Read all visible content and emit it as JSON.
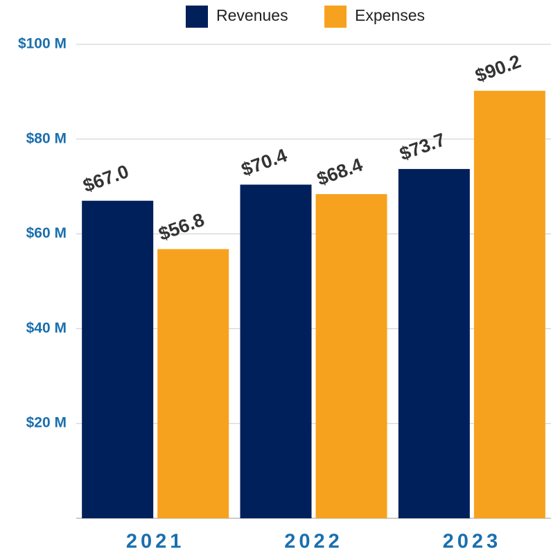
{
  "chart_data": {
    "type": "bar",
    "categories": [
      "2021",
      "2022",
      "2023"
    ],
    "series": [
      {
        "name": "Revenues",
        "color": "#00205b",
        "values": [
          67.0,
          70.4,
          73.7
        ],
        "value_labels": [
          "$67.0",
          "$70.4",
          "$73.7"
        ]
      },
      {
        "name": "Expenses",
        "color": "#f7a21e",
        "values": [
          56.8,
          68.4,
          90.2
        ],
        "value_labels": [
          "$56.8",
          "$68.4",
          "$90.2"
        ]
      }
    ],
    "ylim": [
      0,
      100
    ],
    "yticks": [
      {
        "value": 20,
        "label": "$20 M"
      },
      {
        "value": 40,
        "label": "$40 M"
      },
      {
        "value": 60,
        "label": "$60 M"
      },
      {
        "value": 80,
        "label": "$80 M"
      },
      {
        "value": 100,
        "label": "$100 M"
      }
    ],
    "grid": true,
    "legend": "top"
  }
}
